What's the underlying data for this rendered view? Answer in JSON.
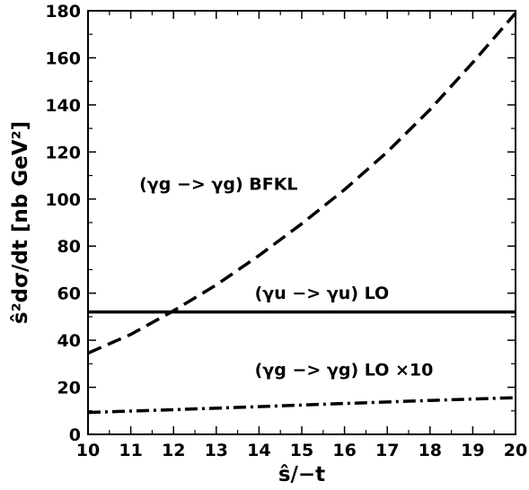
{
  "chart_data": {
    "type": "line",
    "xlabel": "ŝ/−t",
    "ylabel": "ŝ²dσ/dt [nb GeV²]",
    "xlim": [
      10,
      20
    ],
    "ylim": [
      0,
      180
    ],
    "xticks": [
      10,
      11,
      12,
      13,
      14,
      15,
      16,
      17,
      18,
      19,
      20
    ],
    "yticks": [
      0,
      20,
      40,
      60,
      80,
      100,
      120,
      140,
      160,
      180
    ],
    "grid": false,
    "series": [
      {
        "name": "(γg −> γg) BFKL",
        "style": "dashed",
        "x": [
          10,
          11,
          12,
          13,
          14,
          15,
          16,
          17,
          18,
          19,
          20
        ],
        "values": [
          34.5,
          42.5,
          52.5,
          63.5,
          76,
          89.5,
          104,
          120,
          138,
          158,
          179
        ]
      },
      {
        "name": "(γu −> γu) LO",
        "style": "solid",
        "x": [
          10,
          20
        ],
        "values": [
          52,
          52
        ]
      },
      {
        "name": "(γg −> γg) LO ×10",
        "style": "dashdot",
        "x": [
          10,
          12,
          14,
          16,
          18,
          20
        ],
        "values": [
          9.3,
          10.5,
          11.8,
          13.1,
          14.4,
          15.6
        ]
      }
    ],
    "annotations": [
      {
        "text": "(γg −> γg) BFKL",
        "x": 11.2,
        "y": 104
      },
      {
        "text": "(γu −> γu) LO",
        "x": 13.9,
        "y": 57.5
      },
      {
        "text": "(γg −> γg) LO ×10",
        "x": 13.9,
        "y": 25
      }
    ]
  }
}
